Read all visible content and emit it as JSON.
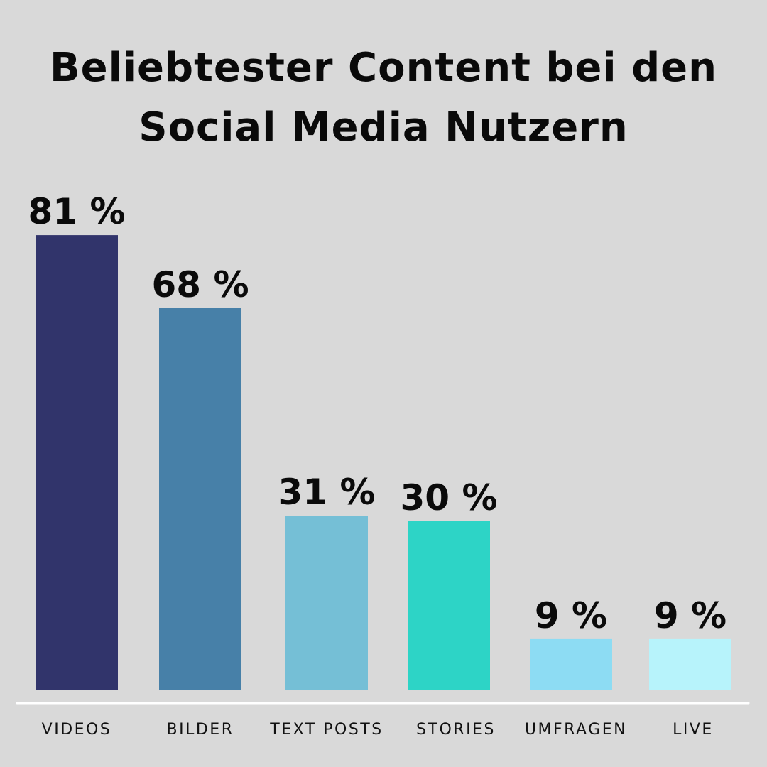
{
  "chart_data": {
    "type": "bar",
    "title": "Beliebtester Content bei den Social Media Nutzern",
    "xlabel": "",
    "ylabel": "",
    "ylim": [
      0,
      100
    ],
    "grid": false,
    "legend": "none",
    "categories": [
      "VIDEOS",
      "BILDER",
      "TEXT POSTS",
      "STORIES",
      "UMFRAGEN",
      "LIVE"
    ],
    "values": [
      81,
      68,
      31,
      30,
      9,
      9
    ],
    "value_labels": [
      "81 %",
      "68 %",
      "31 %",
      "30 %",
      "9 %",
      "9 %"
    ],
    "colors": [
      "#31346b",
      "#4780a8",
      "#75bfd6",
      "#2dd4c6",
      "#8ddcf3",
      "#b7f3fb"
    ],
    "baseline_color": "#ffffff",
    "background_color": "#d9d9d9"
  }
}
